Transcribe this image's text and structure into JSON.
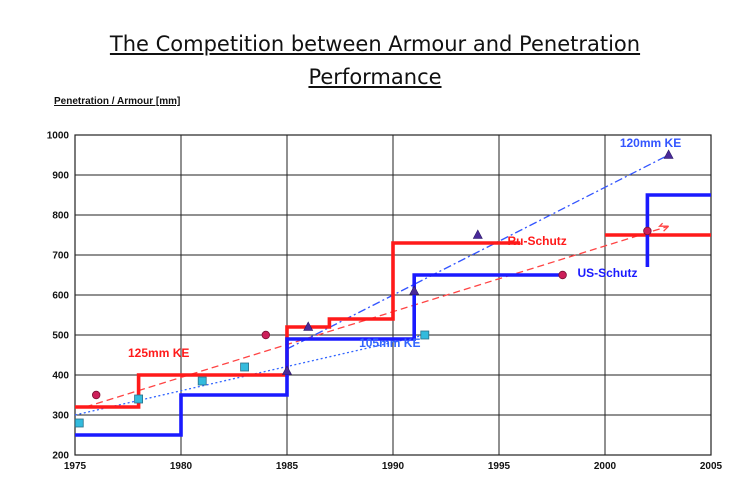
{
  "title": {
    "line1": "The Competition between Armour and Penetration",
    "line2": "Performance"
  },
  "chart_data": {
    "type": "line",
    "ylabel": "Penetration / Armour [mm]",
    "xlim": [
      1975,
      2005
    ],
    "ylim": [
      200,
      1000
    ],
    "x_ticks": [
      1975,
      1980,
      1985,
      1990,
      1995,
      2000,
      2005
    ],
    "y_ticks": [
      200,
      300,
      400,
      500,
      600,
      700,
      800,
      900,
      1000
    ],
    "grid": true,
    "colors": {
      "red": "#ff1a1a",
      "blue": "#1a1aff",
      "marker_square": "#33bbdd",
      "marker_circle": "#cc1f5a",
      "marker_triangle": "#4a2a9a"
    },
    "series": [
      {
        "name": "Ru-Schutz",
        "kind": "step",
        "color": "#ff1a1a",
        "points": [
          [
            1975,
            320
          ],
          [
            1978,
            320
          ],
          [
            1978,
            400
          ],
          [
            1985,
            400
          ],
          [
            1985,
            520
          ],
          [
            1987,
            520
          ],
          [
            1987,
            540
          ],
          [
            1990,
            540
          ],
          [
            1990,
            730
          ],
          [
            1996,
            730
          ]
        ]
      },
      {
        "name": "Ru-Schutz",
        "kind": "step",
        "color": "#ff1a1a",
        "points": [
          [
            2000,
            750
          ],
          [
            2005,
            750
          ]
        ]
      },
      {
        "name": "US-Schutz",
        "kind": "step",
        "color": "#1a1aff",
        "points": [
          [
            1975,
            250
          ],
          [
            1980,
            250
          ],
          [
            1980,
            350
          ],
          [
            1985,
            350
          ],
          [
            1985,
            490
          ],
          [
            1991,
            490
          ],
          [
            1991,
            650
          ],
          [
            1998,
            650
          ]
        ]
      },
      {
        "name": "US-Schutz",
        "kind": "step",
        "color": "#1a1aff",
        "points": [
          [
            2002,
            670
          ],
          [
            2002,
            850
          ],
          [
            2005,
            850
          ]
        ]
      }
    ],
    "trend_lines": [
      {
        "name": "125mm KE",
        "color": "#ff4444",
        "style": "dashed",
        "points": [
          [
            1975.5,
            320
          ],
          [
            2003,
            772
          ]
        ]
      },
      {
        "name": "105mm KE",
        "color": "#3366ff",
        "style": "dotted",
        "points": [
          [
            1975,
            300
          ],
          [
            1991.5,
            500
          ]
        ]
      },
      {
        "name": "120mm KE",
        "color": "#3355ff",
        "style": "dashdot",
        "points": [
          [
            1985,
            465
          ],
          [
            2003,
            950
          ]
        ]
      }
    ],
    "markers": [
      {
        "shape": "square",
        "x": 1975.2,
        "y": 280
      },
      {
        "shape": "square",
        "x": 1978,
        "y": 340
      },
      {
        "shape": "square",
        "x": 1981,
        "y": 385
      },
      {
        "shape": "square",
        "x": 1983,
        "y": 420
      },
      {
        "shape": "square",
        "x": 1991.5,
        "y": 500
      },
      {
        "shape": "circle",
        "x": 1976,
        "y": 350
      },
      {
        "shape": "circle",
        "x": 1984,
        "y": 500
      },
      {
        "shape": "circle",
        "x": 1998,
        "y": 650
      },
      {
        "shape": "circle",
        "x": 2002,
        "y": 760
      },
      {
        "shape": "triangle",
        "x": 1985,
        "y": 410
      },
      {
        "shape": "triangle",
        "x": 1986,
        "y": 520
      },
      {
        "shape": "triangle",
        "x": 1991,
        "y": 610
      },
      {
        "shape": "triangle",
        "x": 1994,
        "y": 750
      },
      {
        "shape": "triangle",
        "x": 2003,
        "y": 950
      }
    ],
    "annotations": [
      {
        "text": "120mm KE",
        "color": "#3355ff",
        "x": 2000.7,
        "y": 970
      },
      {
        "text": "Ru-Schutz",
        "color": "#ff1a1a",
        "x": 1995.4,
        "y": 725
      },
      {
        "text": "US-Schutz",
        "color": "#1a1aff",
        "x": 1998.7,
        "y": 645
      },
      {
        "text": "125mm KE",
        "color": "#ff1a1a",
        "x": 1977.5,
        "y": 445
      },
      {
        "text": "105mm KE",
        "color": "#3366ff",
        "x": 1988.4,
        "y": 470
      }
    ]
  }
}
